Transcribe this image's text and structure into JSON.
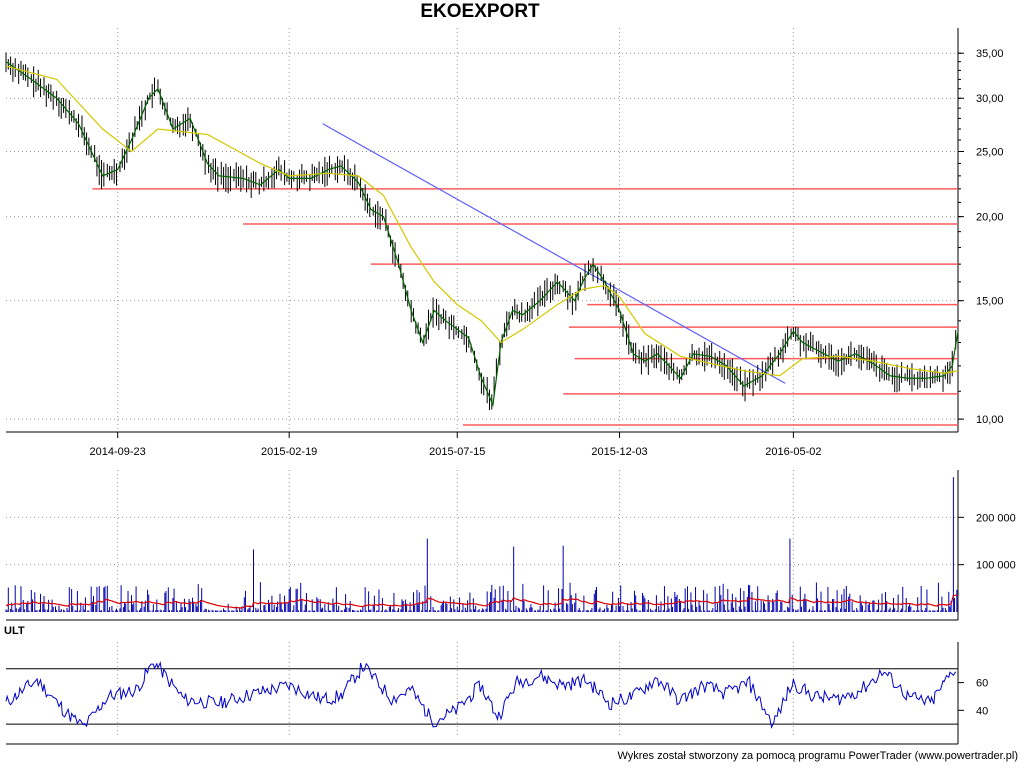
{
  "chart_data": [
    {
      "type": "line",
      "title": "EKOEXPORT",
      "log_scale": true,
      "ylim": [
        9.7,
        36
      ],
      "x_range": [
        "2014-06-18",
        "2016-09-22"
      ],
      "x_ticks": [
        "2014-09-23",
        "2015-02-19",
        "2015-07-15",
        "2015-12-03",
        "2016-05-02"
      ],
      "y_ticks": [
        "35,00",
        "30,00",
        "25,00",
        "20,00",
        "15,00",
        "10,00"
      ],
      "y_tick_values": [
        35,
        30,
        25,
        20,
        15,
        10
      ],
      "grid": true,
      "series": [
        {
          "color": "#006400",
          "x": [
            "2014-06-18",
            "2014-07-10",
            "2014-08-01",
            "2014-08-20",
            "2014-09-10",
            "2014-09-23",
            "2014-10-05",
            "2014-10-20",
            "2014-10-28",
            "2014-11-10",
            "2014-11-25",
            "2014-12-10",
            "2014-12-20",
            "2015-01-10",
            "2015-01-25",
            "2015-02-10",
            "2015-02-19",
            "2015-03-10",
            "2015-03-25",
            "2015-04-05",
            "2015-04-20",
            "2015-05-01",
            "2015-05-12",
            "2015-05-25",
            "2015-06-05",
            "2015-06-15",
            "2015-06-25",
            "2015-07-05",
            "2015-07-15",
            "2015-07-25",
            "2015-08-05",
            "2015-08-15",
            "2015-08-22",
            "2015-09-01",
            "2015-09-10",
            "2015-09-25",
            "2015-10-10",
            "2015-10-25",
            "2015-11-01",
            "2015-11-10",
            "2015-11-20",
            "2015-12-03",
            "2015-12-15",
            "2015-12-25",
            "2016-01-05",
            "2016-01-15",
            "2016-01-25",
            "2016-02-05",
            "2016-02-20",
            "2016-03-05",
            "2016-03-20",
            "2016-04-05",
            "2016-04-20",
            "2016-05-02",
            "2016-05-10",
            "2016-05-25",
            "2016-06-10",
            "2016-06-25",
            "2016-07-10",
            "2016-07-25",
            "2016-08-10",
            "2016-08-25",
            "2016-09-10",
            "2016-09-17",
            "2016-09-22"
          ],
          "values": [
            34,
            32,
            30,
            27.5,
            23,
            23.5,
            26,
            30,
            31,
            27,
            28,
            24,
            23,
            22.8,
            22.3,
            23.5,
            22.8,
            22.8,
            23.5,
            23.8,
            22.5,
            20.5,
            20,
            17,
            14.5,
            13,
            14.5,
            14,
            13.6,
            13.2,
            11.5,
            10.5,
            13,
            14.5,
            14.3,
            15,
            16,
            15,
            16,
            17,
            16,
            14.5,
            12.5,
            12.2,
            12.5,
            12,
            11.5,
            12.5,
            12.4,
            12,
            11.2,
            11.6,
            12.5,
            13.5,
            13,
            12.6,
            12.2,
            12.5,
            12.1,
            11.6,
            11.5,
            11.5,
            11.6,
            12,
            13.5
          ]
        },
        {
          "color": "#d4c800",
          "x": [
            "2014-06-18",
            "2014-08-01",
            "2014-09-10",
            "2014-10-05",
            "2014-10-28",
            "2014-12-10",
            "2015-01-25",
            "2015-02-19",
            "2015-03-25",
            "2015-04-20",
            "2015-05-12",
            "2015-06-05",
            "2015-06-25",
            "2015-07-15",
            "2015-08-05",
            "2015-08-22",
            "2015-09-10",
            "2015-10-10",
            "2015-11-01",
            "2015-11-20",
            "2015-12-03",
            "2015-12-25",
            "2016-01-25",
            "2016-02-20",
            "2016-03-20",
            "2016-04-20",
            "2016-05-10",
            "2016-06-10",
            "2016-07-10",
            "2016-08-10",
            "2016-09-10",
            "2016-09-22"
          ],
          "values": [
            33.5,
            32,
            27,
            25,
            27,
            26.5,
            24,
            23,
            23.2,
            23,
            21.5,
            18,
            16,
            14.8,
            14,
            13,
            13.6,
            14.8,
            15.6,
            15.8,
            15.2,
            13.4,
            12.4,
            12.1,
            11.8,
            11.6,
            12.3,
            12.4,
            12.2,
            11.9,
            11.7,
            11.8
          ]
        }
      ],
      "horizontal_lines": [
        {
          "y": 22,
          "x_from": "2014-09-01",
          "color": "#ff5a5a"
        },
        {
          "y": 19.5,
          "x_from": "2015-01-10",
          "color": "#ff5a5a"
        },
        {
          "y": 17,
          "x_from": "2015-05-01",
          "color": "#ff5a5a"
        },
        {
          "y": 14.8,
          "x_from": "2015-11-05",
          "color": "#ff5a5a"
        },
        {
          "y": 13.7,
          "x_from": "2015-10-20",
          "color": "#ff5a5a"
        },
        {
          "y": 12.3,
          "x_from": "2015-10-25",
          "color": "#ff5a5a"
        },
        {
          "y": 10.9,
          "x_from": "2015-10-15",
          "color": "#ff5a5a"
        },
        {
          "y": 9.8,
          "x_from": "2015-07-20",
          "color": "#ff5a5a"
        }
      ],
      "trend_line": {
        "x": [
          "2015-03-20",
          "2016-04-25"
        ],
        "y": [
          27.5,
          11.3
        ],
        "color": "#6060ff"
      }
    },
    {
      "type": "bar",
      "ylim": [
        0,
        300000
      ],
      "y_ticks": [
        "200 000",
        "100 000"
      ],
      "y_tick_values": [
        200000,
        100000
      ],
      "bar_color": "#0000b0",
      "volume_spikes": [
        {
          "x": "2015-01-20",
          "y": 132000
        },
        {
          "x": "2015-06-20",
          "y": 155000
        },
        {
          "x": "2015-09-02",
          "y": 138000
        },
        {
          "x": "2015-10-15",
          "y": 140000
        },
        {
          "x": "2016-04-30",
          "y": 155000
        },
        {
          "x": "2016-09-18",
          "y": 285000
        }
      ],
      "volume_ma_color": "#e00000"
    },
    {
      "type": "line",
      "name": "ULT",
      "ylim": [
        20,
        85
      ],
      "y_ticks": [
        "60",
        "40"
      ],
      "y_tick_values": [
        60,
        40
      ],
      "reference_lines": [
        70,
        30
      ],
      "color": "#0000cc",
      "x": [
        "2014-06-18",
        "2014-07-15",
        "2014-08-10",
        "2014-08-25",
        "2014-09-15",
        "2014-10-10",
        "2014-10-25",
        "2014-11-20",
        "2014-12-20",
        "2015-01-20",
        "2015-02-19",
        "2015-03-20",
        "2015-04-05",
        "2015-04-25",
        "2015-05-20",
        "2015-06-05",
        "2015-06-25",
        "2015-07-15",
        "2015-08-05",
        "2015-08-20",
        "2015-09-05",
        "2015-09-25",
        "2015-10-15",
        "2015-11-05",
        "2015-11-25",
        "2015-12-15",
        "2016-01-05",
        "2016-01-25",
        "2016-02-15",
        "2016-03-05",
        "2016-03-25",
        "2016-04-15",
        "2016-05-02",
        "2016-05-20",
        "2016-06-10",
        "2016-07-01",
        "2016-07-20",
        "2016-08-10",
        "2016-08-30",
        "2016-09-15",
        "2016-09-22"
      ],
      "values": [
        45,
        62,
        38,
        28,
        50,
        55,
        75,
        48,
        45,
        52,
        58,
        48,
        50,
        72,
        48,
        55,
        32,
        40,
        58,
        35,
        60,
        65,
        58,
        62,
        45,
        50,
        63,
        47,
        58,
        52,
        60,
        30,
        60,
        50,
        48,
        55,
        68,
        50,
        45,
        65,
        72
      ]
    }
  ],
  "footer": "Wykres został stworzony za pomocą programu PowerTrader (www.powertrader.pl)"
}
